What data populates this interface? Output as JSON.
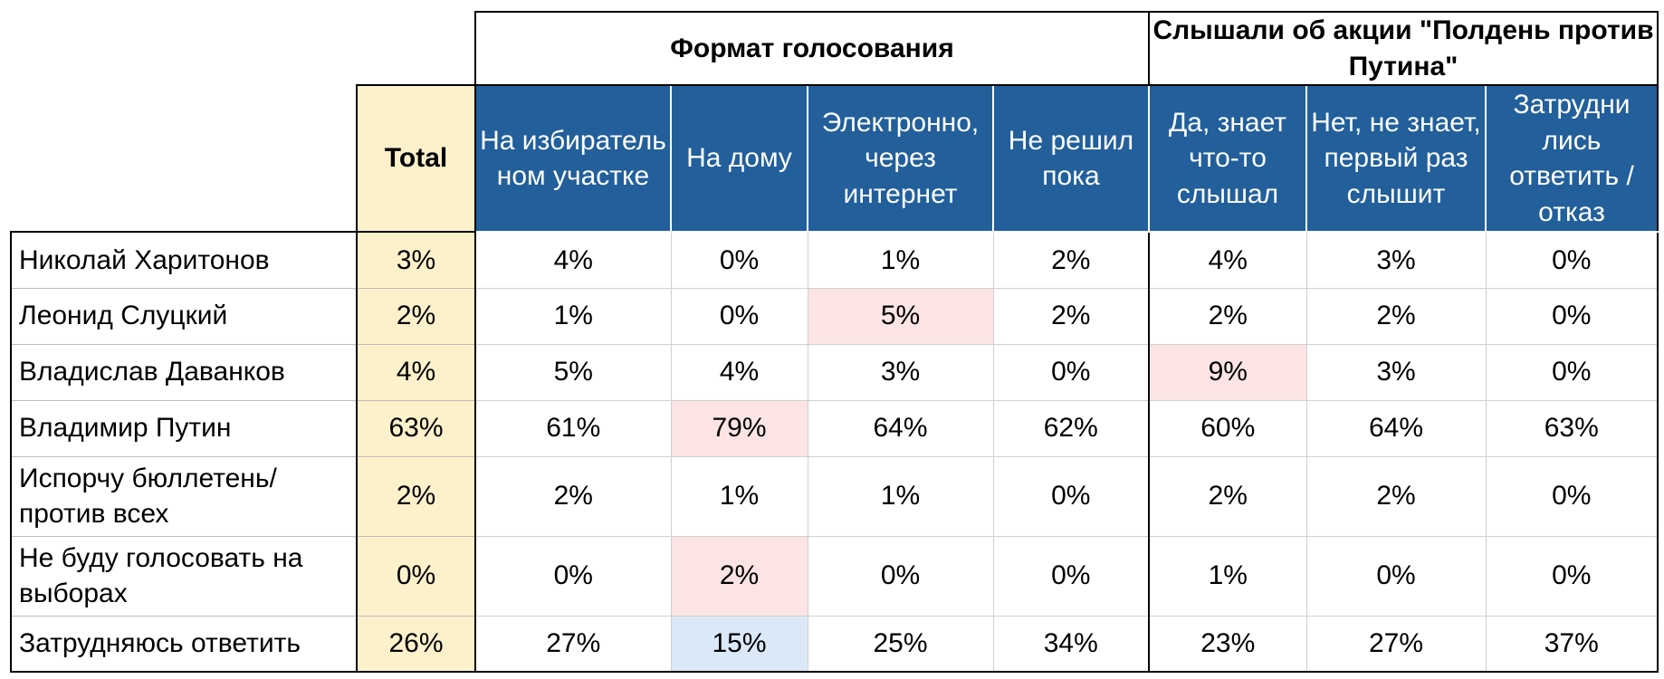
{
  "header": {
    "total_label": "Total",
    "groups": [
      {
        "label": "Формат голосования",
        "span": 4
      },
      {
        "label": "Слышали об акции \"Полдень против Путина\"",
        "span": 3
      }
    ],
    "columns": [
      "На избиратель ном участке",
      "На дому",
      "Электронно, через интернет",
      "Не решил пока",
      "Да, знает что-то слышал",
      "Нет, не знает, первый раз слышит",
      "Затрудни лись ответить / отказ"
    ]
  },
  "rows": [
    {
      "label": "Николай Харитонов",
      "total": "3%",
      "values": [
        "4%",
        "0%",
        "1%",
        "2%",
        "4%",
        "3%",
        "0%"
      ],
      "highlights": [
        "",
        "",
        "",
        "",
        "",
        "",
        ""
      ]
    },
    {
      "label": "Леонид Слуцкий",
      "total": "2%",
      "values": [
        "1%",
        "0%",
        "5%",
        "2%",
        "2%",
        "2%",
        "0%"
      ],
      "highlights": [
        "",
        "",
        "pink",
        "",
        "",
        "",
        ""
      ]
    },
    {
      "label": "Владислав Даванков",
      "total": "4%",
      "values": [
        "5%",
        "4%",
        "3%",
        "0%",
        "9%",
        "3%",
        "0%"
      ],
      "highlights": [
        "",
        "",
        "",
        "",
        "pink",
        "",
        ""
      ]
    },
    {
      "label": "Владимир Путин",
      "total": "63%",
      "values": [
        "61%",
        "79%",
        "64%",
        "62%",
        "60%",
        "64%",
        "63%"
      ],
      "highlights": [
        "",
        "pink",
        "",
        "",
        "",
        "",
        ""
      ]
    },
    {
      "label": "Испорчу бюллетень/против всех",
      "total": "2%",
      "values": [
        "2%",
        "1%",
        "1%",
        "0%",
        "2%",
        "2%",
        "0%"
      ],
      "highlights": [
        "",
        "",
        "",
        "",
        "",
        "",
        ""
      ]
    },
    {
      "label": "Не буду голосовать на выборах",
      "total": "0%",
      "values": [
        "0%",
        "2%",
        "0%",
        "0%",
        "1%",
        "0%",
        "0%"
      ],
      "highlights": [
        "",
        "pink",
        "",
        "",
        "",
        "",
        ""
      ]
    },
    {
      "label": "Затрудняюсь ответить",
      "total": "26%",
      "values": [
        "27%",
        "15%",
        "25%",
        "34%",
        "23%",
        "27%",
        "37%"
      ],
      "highlights": [
        "",
        "blue",
        "",
        "",
        "",
        "",
        ""
      ]
    }
  ],
  "colors": {
    "header_blue": "#225f9b",
    "total_yellow": "#fdf1cc",
    "highlight_pink": "#fce4e4",
    "highlight_blue": "#dbe8f7"
  }
}
